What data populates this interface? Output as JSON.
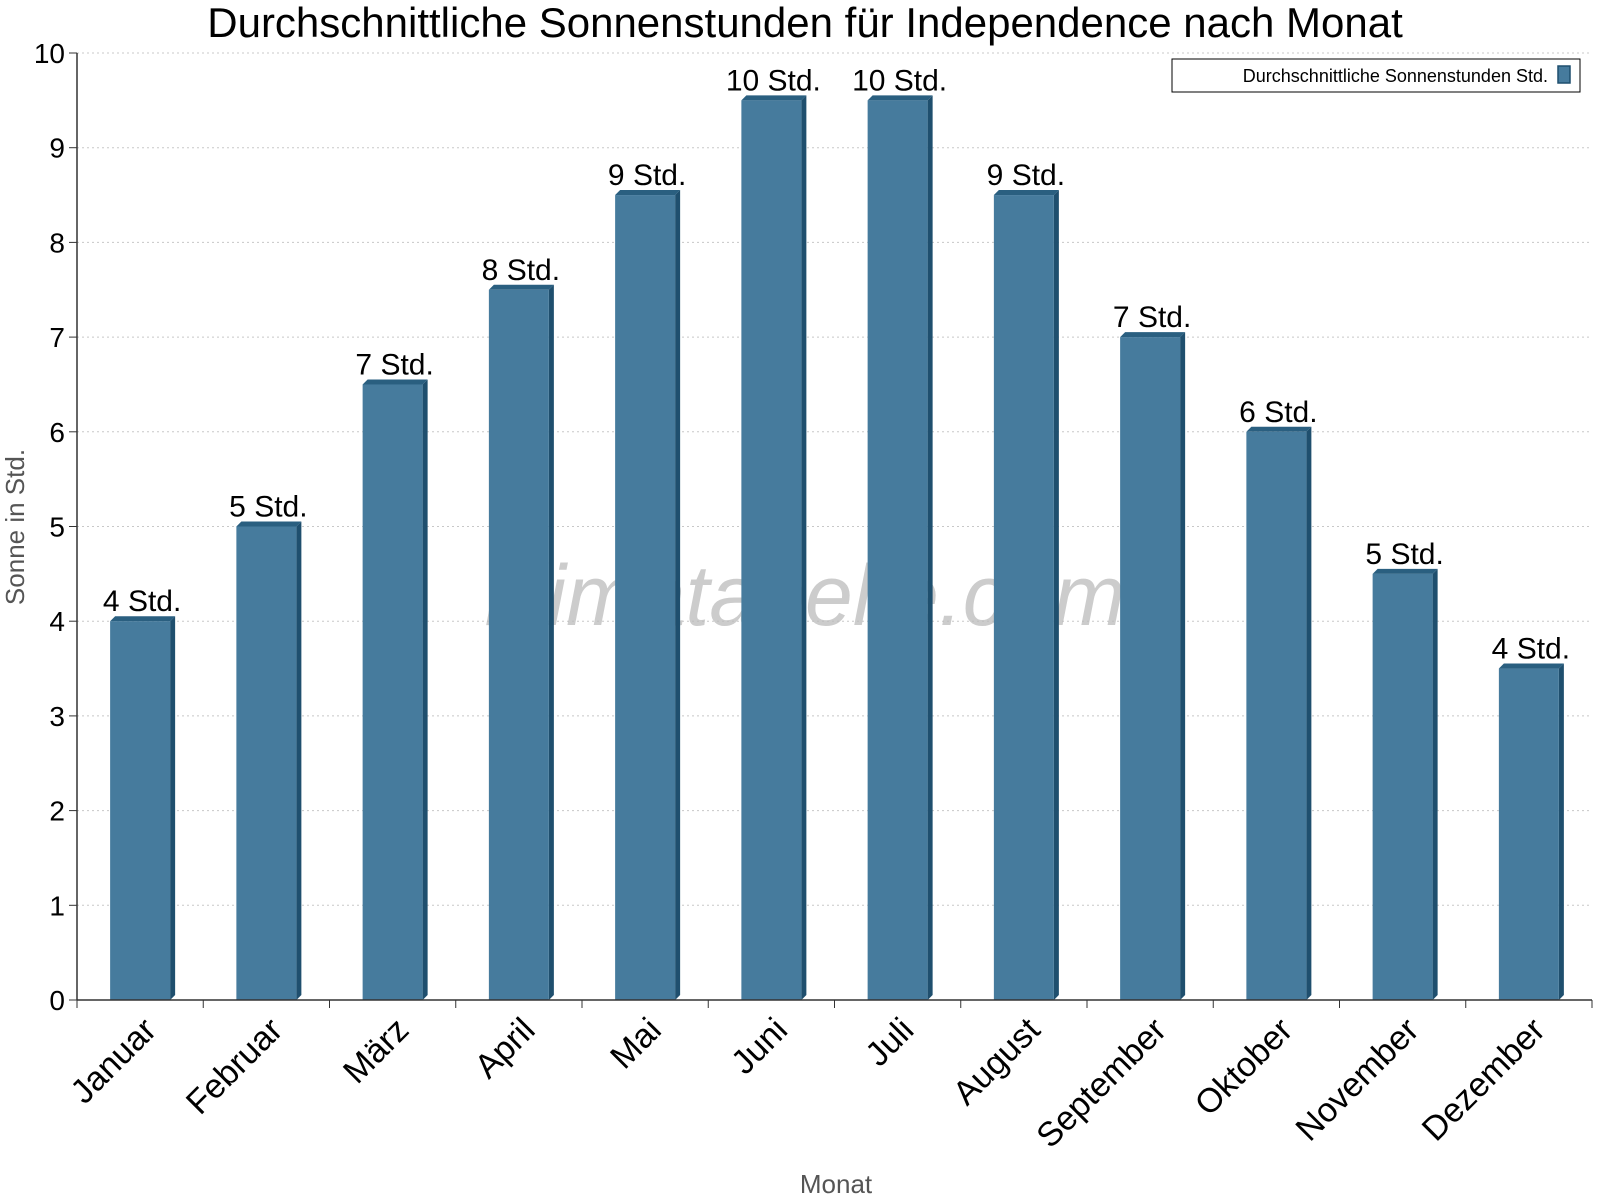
{
  "chart_data": {
    "type": "bar",
    "title": "Durchschnittliche Sonnenstunden für Independence nach Monat",
    "xlabel": "Monat",
    "ylabel": "Sonne in Std.",
    "ylim": [
      0,
      10
    ],
    "yticks": [
      "0",
      "1",
      "2",
      "3",
      "4",
      "5",
      "6",
      "7",
      "8",
      "9",
      "10"
    ],
    "grid": true,
    "legend_position": "top-right",
    "categories": [
      "Januar",
      "Februar",
      "März",
      "April",
      "Mai",
      "Juni",
      "Juli",
      "August",
      "September",
      "Oktober",
      "November",
      "Dezember"
    ],
    "series": [
      {
        "name": "Durchschnittliche Sonnenstunden Std.",
        "values": [
          4.0,
          5.0,
          6.5,
          7.5,
          8.5,
          9.5,
          9.5,
          8.5,
          7.0,
          6.0,
          4.5,
          3.5
        ],
        "data_labels": [
          "4 Std.",
          "5 Std.",
          "7 Std.",
          "8 Std.",
          "9 Std.",
          "10 Std.",
          "10 Std.",
          "9 Std.",
          "7 Std.",
          "6 Std.",
          "5 Std.",
          "4 Std."
        ]
      }
    ],
    "colors": {
      "bar_front": "#467b9d",
      "bar_side": "#1f4f6e",
      "bar_top": "#2a5f80",
      "grid": "#c8c8c8",
      "axis": "#333333"
    },
    "watermark": "klimatabelle.com"
  }
}
